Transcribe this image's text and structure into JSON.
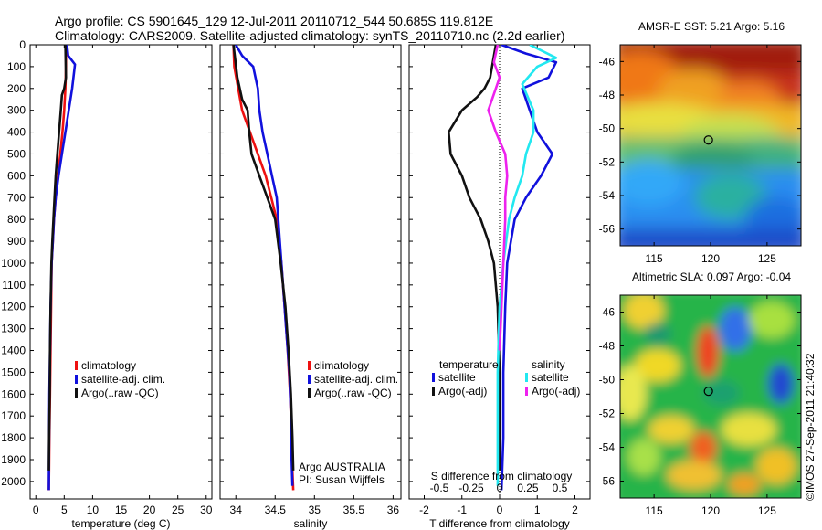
{
  "title_line1": "Argo profile: CS 5901645_129 12-Jul-2011 20110712_544 50.685S 119.812E",
  "title_line2": "Climatology: CARS2009. Satellite-adjusted climatology: synTS_20110710.nc (2.2d earlier)",
  "credit": "©IMOS 27-Sep-2011 21:40:32",
  "colors": {
    "climatology": "#ee1111",
    "satellite_adj": "#1111dd",
    "argo": "#111111",
    "salinity_satellite": "#22e8f0",
    "salinity_argo": "#ee22ee"
  },
  "chart_data": [
    {
      "type": "line",
      "name": "temperature-panel",
      "xlabel": "temperature (deg C)",
      "ylabel": "",
      "xlim": [
        -1,
        31
      ],
      "ylim": [
        2080,
        0
      ],
      "xticks": [
        0,
        5,
        10,
        15,
        20,
        25,
        30
      ],
      "yticks": [
        0,
        100,
        200,
        300,
        400,
        500,
        600,
        700,
        800,
        900,
        1000,
        1100,
        1200,
        1300,
        1400,
        1500,
        1600,
        1700,
        1800,
        1900,
        2000
      ],
      "legend_position": "lower-center",
      "series": [
        {
          "name": "climatology",
          "color": "climatology",
          "x": [
            5.3,
            5.3,
            5.2,
            5.0,
            4.7,
            4.3,
            3.9,
            3.5,
            3.2,
            3.0,
            2.8,
            2.7,
            2.6,
            2.5,
            2.4,
            2.35,
            2.3
          ],
          "y": [
            0,
            100,
            200,
            300,
            400,
            500,
            600,
            700,
            800,
            900,
            1000,
            1200,
            1400,
            1600,
            1800,
            1950,
            2040
          ]
        },
        {
          "name": "satellite-adj. clim.",
          "color": "satellite_adj",
          "x": [
            5.5,
            5.7,
            6.9,
            6.4,
            5.8,
            5.2,
            4.6,
            4.0,
            3.5,
            3.2,
            3.0,
            2.8,
            2.6,
            2.5,
            2.4,
            2.35,
            2.3
          ],
          "y": [
            0,
            50,
            90,
            200,
            300,
            400,
            500,
            600,
            700,
            800,
            900,
            1000,
            1200,
            1400,
            1600,
            1800,
            2040
          ]
        },
        {
          "name": "Argo(..raw -QC)",
          "color": "argo",
          "x": [
            5.2,
            5.3,
            5.0,
            4.6,
            4.4,
            4.1,
            3.8,
            3.5,
            3.3,
            3.1,
            2.9,
            2.75,
            2.6,
            2.5,
            2.45,
            2.35,
            2.3
          ],
          "y": [
            0,
            150,
            200,
            230,
            300,
            400,
            500,
            600,
            700,
            800,
            900,
            1000,
            1200,
            1400,
            1600,
            1800,
            1950
          ]
        }
      ]
    },
    {
      "type": "line",
      "name": "salinity-panel",
      "xlabel": "salinity",
      "xlim": [
        33.8,
        36.1
      ],
      "ylim": [
        2080,
        0
      ],
      "xticks": [
        34,
        34.5,
        35,
        35.5,
        36
      ],
      "legend_position": "lower-center",
      "annotation": [
        "Argo AUSTRALIA",
        "PI: Susan Wijffels"
      ],
      "series": [
        {
          "name": "climatology",
          "color": "climatology",
          "x": [
            33.97,
            33.98,
            34.03,
            34.08,
            34.18,
            34.28,
            34.38,
            34.45,
            34.52,
            34.58,
            34.62,
            34.66,
            34.69,
            34.71,
            34.72,
            34.73
          ],
          "y": [
            0,
            100,
            200,
            300,
            400,
            500,
            600,
            700,
            800,
            1000,
            1200,
            1400,
            1600,
            1800,
            1950,
            2040
          ]
        },
        {
          "name": "satellite-adj. clim.",
          "color": "satellite_adj",
          "x": [
            34.0,
            34.08,
            34.22,
            34.28,
            34.3,
            34.34,
            34.4,
            34.46,
            34.52,
            34.56,
            34.6,
            34.64,
            34.68,
            34.7,
            34.71,
            34.72
          ],
          "y": [
            0,
            50,
            100,
            200,
            300,
            400,
            500,
            600,
            700,
            900,
            1100,
            1300,
            1500,
            1700,
            1900,
            2020
          ]
        },
        {
          "name": "Argo(..raw -QC)",
          "color": "argo",
          "x": [
            33.97,
            34.02,
            34.05,
            34.08,
            34.15,
            34.17,
            34.2,
            34.3,
            34.4,
            34.5,
            34.57,
            34.63,
            34.67,
            34.7,
            34.72,
            34.73
          ],
          "y": [
            0,
            150,
            200,
            250,
            300,
            400,
            500,
            600,
            700,
            800,
            1000,
            1200,
            1400,
            1600,
            1800,
            1950
          ]
        }
      ]
    },
    {
      "type": "line",
      "name": "difference-panel",
      "xlabel": "T difference from climatology",
      "xlabel2": "S difference from climatology",
      "xlim": [
        -2.4,
        2.4
      ],
      "ylim": [
        2080,
        0
      ],
      "xticks": [
        -2,
        -1,
        0,
        1,
        2
      ],
      "xticklabels2": [
        {
          "v": -1.6,
          "t": "-0.5"
        },
        {
          "v": -0.75,
          "t": "-0.25"
        },
        {
          "v": 0,
          "t": "0"
        },
        {
          "v": 0.75,
          "t": "0.25"
        },
        {
          "v": 1.6,
          "t": "0.5"
        }
      ],
      "legend_position": "lower-center",
      "legend_groups": [
        "temperature",
        "salinity"
      ],
      "series": [
        {
          "name": "satellite",
          "group": "temperature",
          "color": "satellite_adj",
          "x": [
            0.05,
            0.7,
            1.5,
            1.3,
            0.6,
            0.8,
            1.0,
            1.4,
            1.1,
            0.7,
            0.4,
            0.2,
            0.15,
            0.1,
            0.1,
            0.05
          ],
          "y": [
            0,
            40,
            80,
            150,
            200,
            300,
            400,
            500,
            600,
            700,
            800,
            1000,
            1200,
            1500,
            1800,
            2040
          ]
        },
        {
          "name": "Argo(-adj)",
          "group": "temperature",
          "color": "argo",
          "x": [
            -0.1,
            -0.25,
            -0.4,
            -0.6,
            -1.0,
            -1.35,
            -1.3,
            -1.0,
            -0.8,
            -0.5,
            -0.3,
            -0.15,
            -0.05,
            0.0,
            0.0
          ],
          "y": [
            0,
            150,
            200,
            240,
            300,
            400,
            500,
            600,
            700,
            800,
            900,
            1000,
            1200,
            1500,
            1950
          ]
        },
        {
          "name": "satellite",
          "group": "salinity",
          "color": "salinity_satellite",
          "x": [
            0.8,
            1.5,
            1.0,
            0.6,
            0.9,
            0.9,
            0.7,
            0.6,
            0.4,
            0.25,
            0.1,
            0.0,
            -0.05,
            -0.05,
            -0.05
          ],
          "y": [
            0,
            60,
            100,
            180,
            300,
            400,
            500,
            600,
            700,
            800,
            1000,
            1200,
            1500,
            1800,
            2020
          ]
        },
        {
          "name": "Argo(-adj)",
          "group": "salinity",
          "color": "salinity_argo",
          "x": [
            -0.05,
            -0.15,
            0.0,
            -0.1,
            -0.3,
            -0.1,
            0.15,
            0.2,
            0.15,
            0.15,
            0.1,
            0.05,
            0.0
          ],
          "y": [
            0,
            80,
            150,
            200,
            300,
            400,
            500,
            600,
            700,
            800,
            1000,
            1200,
            1400
          ]
        }
      ]
    },
    {
      "type": "heatmap",
      "name": "sst-map",
      "title": "AMSR-E SST: 5.21 Argo: 5.16",
      "xlim": [
        112,
        128
      ],
      "ylim": [
        -57,
        -45
      ],
      "xticks": [
        115,
        120,
        125
      ],
      "yticks": [
        -46,
        -48,
        -50,
        -52,
        -54,
        -56
      ],
      "marker": {
        "lon": 119.812,
        "lat": -50.685
      }
    },
    {
      "type": "heatmap",
      "name": "sla-map",
      "title": "Altimetric SLA: 0.097 Argo: -0.04",
      "xlim": [
        112,
        128
      ],
      "ylim": [
        -57,
        -45
      ],
      "xticks": [
        115,
        120,
        125
      ],
      "yticks": [
        -46,
        -48,
        -50,
        -52,
        -54,
        -56
      ],
      "marker": {
        "lon": 119.812,
        "lat": -50.685
      }
    }
  ]
}
